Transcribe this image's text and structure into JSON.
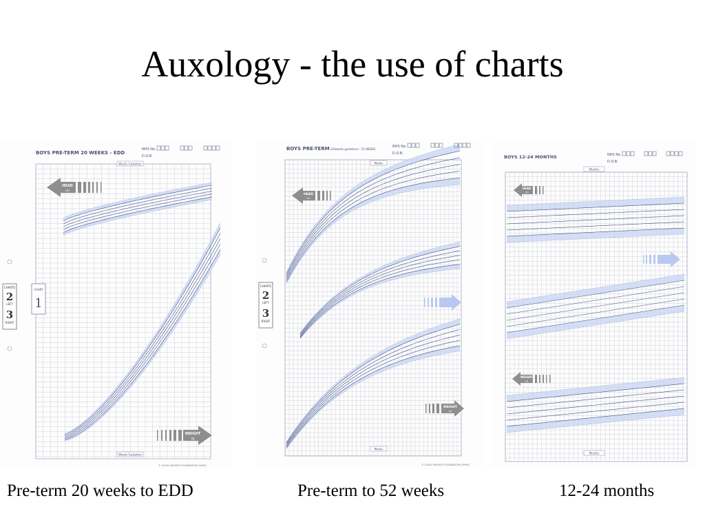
{
  "slide": {
    "title": "Auxology - the use of charts"
  },
  "charts": [
    {
      "caption": "Pre-term 20 weeks to EDD",
      "header": "BOYS PRE-TERM 20 WEEKS - EDD",
      "nhs_label": "NHS No.",
      "dob_label": "D.O.B.",
      "axis_label_top": "Weeks Gestation",
      "axis_label_bottom": "Weeks Gestation",
      "head_label": "HEAD",
      "head_unit": "cm",
      "weight_label": "WEIGHT",
      "weight_unit": "kg",
      "side_chart_label": "CHART",
      "side_chart_number": "1",
      "tab_label": "CHARTS",
      "tab_num_1": "2",
      "tab_word_1": "LEFT",
      "tab_num_2": "3",
      "tab_word_2": "RIGHT",
      "footer": "© CHILD GROWTH FOUNDATION 1996/1"
    },
    {
      "caption": "Pre-term to 52 weeks",
      "header": "BOYS PRE-TERM",
      "header_sub": "(20weeks gestation) - 52 WEEKS",
      "nhs_label": "NHS No.",
      "dob_label": "D.O.B.",
      "axis_label_top": "Weeks",
      "axis_label_bottom": "Weeks",
      "head_label": "HEAD",
      "head_unit": "cm",
      "weight_label": "WEIGHT",
      "weight_unit": "kg",
      "tab_label": "CHARTS",
      "tab_num_1": "2",
      "tab_word_1": "LEFT",
      "tab_num_2": "3",
      "tab_word_2": "RIGHT",
      "footer": "© CHILD GROWTH FOUNDATION 1996/1"
    },
    {
      "caption": "12-24 months",
      "header": "BOYS 12-24 MONTHS",
      "nhs_label": "NHS No.",
      "dob_label": "D.O.B.",
      "axis_label_top": "Months",
      "axis_label_bottom": "Months",
      "head_label": "HEAD",
      "head_unit": "cm",
      "weight_label": "WEIGHT",
      "weight_unit": "kg"
    }
  ],
  "colors": {
    "grid": "#c9ccd6",
    "band": "#cdd8f2",
    "centile": "#3f4f8a",
    "arrow_grey": "#8e8e8e",
    "arrow_blue": "#b8c8f0"
  }
}
